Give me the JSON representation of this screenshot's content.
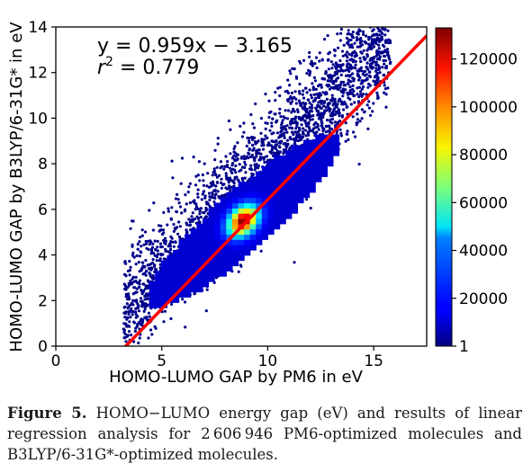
{
  "chart_data": {
    "type": "heatmap",
    "xlabel": "HOMO-LUMO GAP by PM6 in eV",
    "ylabel": "HOMO-LUMO GAP by B3LYP/6-31G* in eV",
    "xlim": [
      0,
      17.5
    ],
    "ylim": [
      0,
      14
    ],
    "x_ticks": [
      "0",
      "5",
      "10",
      "15"
    ],
    "y_ticks": [
      "0",
      "2",
      "4",
      "6",
      "8",
      "10",
      "12",
      "14"
    ],
    "fit": {
      "slope": 0.959,
      "intercept": -3.165,
      "r2": 0.779,
      "color": "#ff0000"
    },
    "annotation_line1": "y = 0.959x − 3.165",
    "annotation_line2_prefix": "r",
    "annotation_line2_sup": "2",
    "annotation_line2_suffix": " = 0.779",
    "colorbar": {
      "min": 1,
      "max": 133000,
      "tick_values": [
        1,
        20000,
        40000,
        60000,
        80000,
        100000,
        120000
      ],
      "tick_labels": [
        "1",
        "20000",
        "40000",
        "60000",
        "80000",
        "100000",
        "120000"
      ],
      "colormap": "jet"
    },
    "density_peak": {
      "x": 8.7,
      "y": 5.4,
      "count": 133000
    },
    "grid": false
  },
  "caption": {
    "label": "Figure 5.",
    "text": " HOMO−LUMO energy gap (eV) and results of linear regression analysis for 2 606 946 PM6-optimized molecules and B3LYP/6-31G*-optimized molecules."
  }
}
